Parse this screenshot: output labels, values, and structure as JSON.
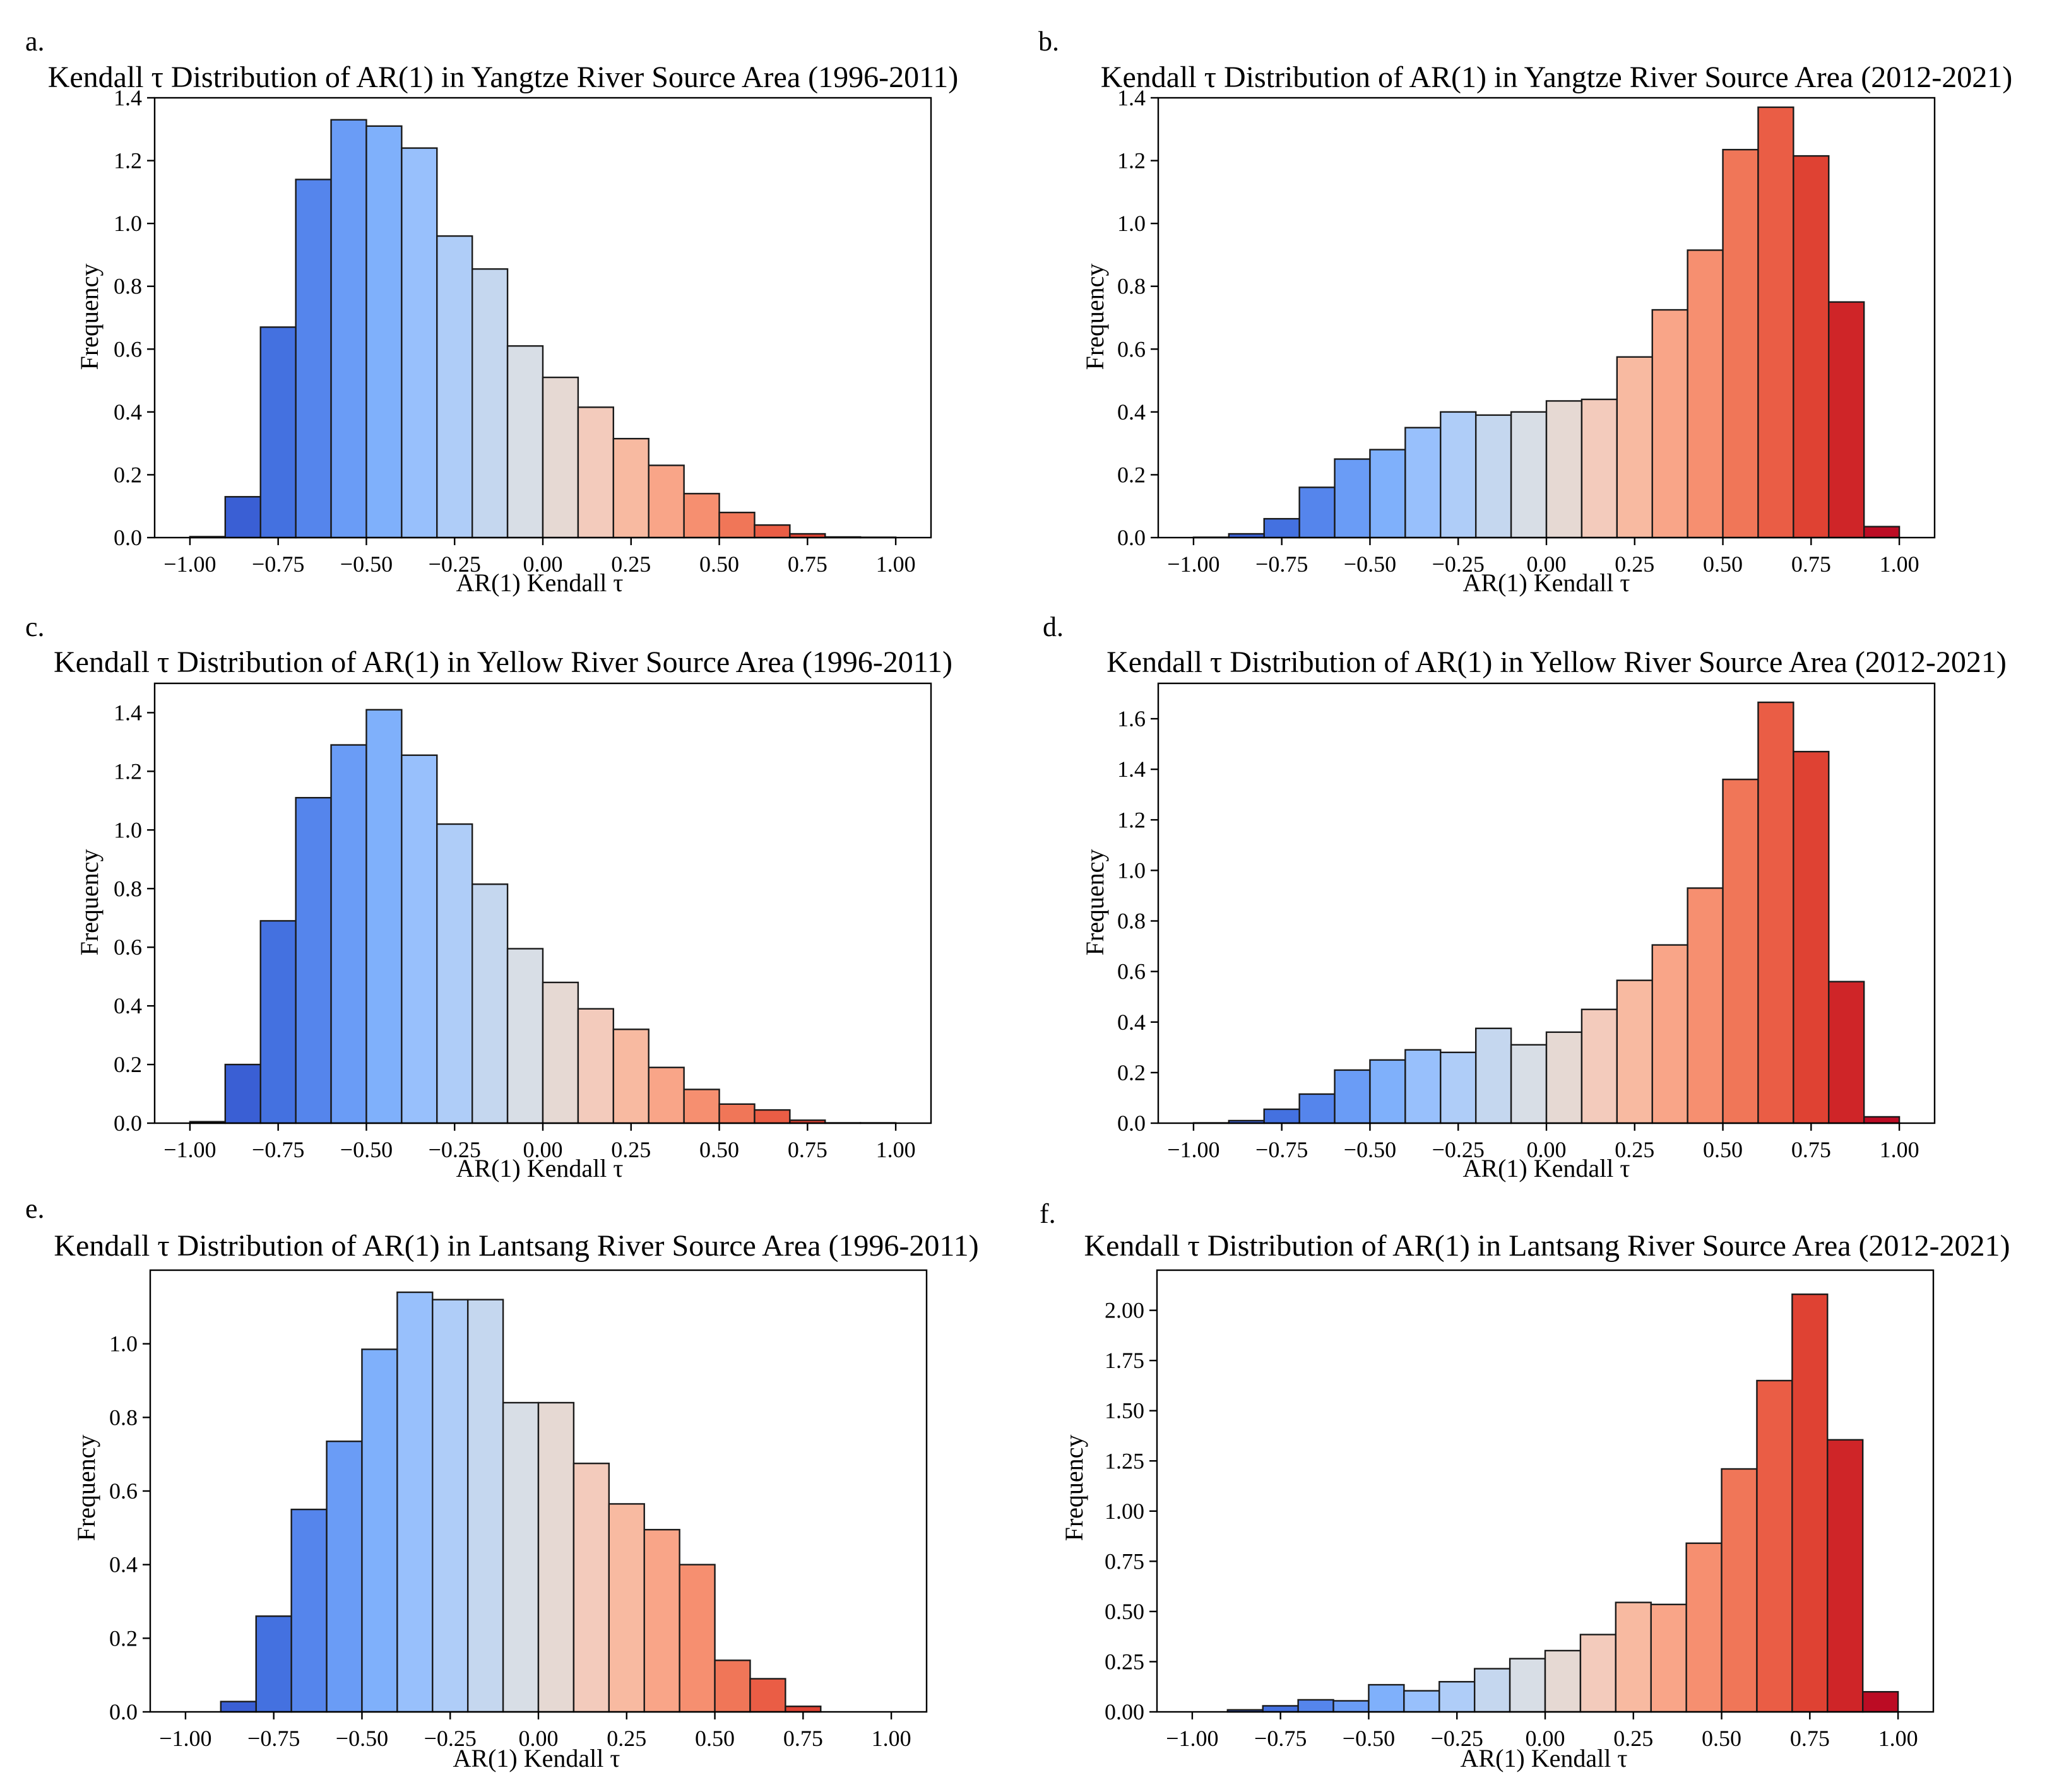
{
  "chart_data": [
    {
      "letter": "a.",
      "type": "bar",
      "title": "Kendall τ Distribution of AR(1) in Yangtze River Source Area (1996-2011)",
      "xlabel": "AR(1) Kendall τ",
      "ylabel": "Frequency",
      "xlim": [
        -1.1,
        1.1
      ],
      "ylim": [
        0,
        1.4
      ],
      "xticks": [
        "−1.00",
        "−0.75",
        "−0.50",
        "−0.25",
        "0.00",
        "0.25",
        "0.50",
        "0.75",
        "1.00"
      ],
      "xtick_values": [
        -1,
        -0.75,
        -0.5,
        -0.25,
        0,
        0.25,
        0.5,
        0.75,
        1
      ],
      "yticks": [
        "0.0",
        "0.2",
        "0.4",
        "0.6",
        "0.8",
        "1.0",
        "1.2",
        "1.4"
      ],
      "ytick_values": [
        0,
        0.2,
        0.4,
        0.6,
        0.8,
        1.0,
        1.2,
        1.4
      ],
      "bin_edges_range": [
        -1.0,
        1.0
      ],
      "values": [
        0.003,
        0.13,
        0.67,
        1.14,
        1.33,
        1.31,
        1.24,
        0.96,
        0.855,
        0.61,
        0.51,
        0.415,
        0.315,
        0.23,
        0.14,
        0.08,
        0.04,
        0.012,
        0.002,
        0.001
      ]
    },
    {
      "letter": "b.",
      "type": "bar",
      "title": "Kendall τ Distribution of AR(1) in Yangtze River Source Area (2012-2021)",
      "xlabel": "AR(1) Kendall τ",
      "ylabel": "Frequency",
      "xlim": [
        -1.1,
        1.1
      ],
      "ylim": [
        0,
        1.4
      ],
      "xticks": [
        "−1.00",
        "−0.75",
        "−0.50",
        "−0.25",
        "0.00",
        "0.25",
        "0.50",
        "0.75",
        "1.00"
      ],
      "xtick_values": [
        -1,
        -0.75,
        -0.5,
        -0.25,
        0,
        0.25,
        0.5,
        0.75,
        1
      ],
      "yticks": [
        "0.0",
        "0.2",
        "0.4",
        "0.6",
        "0.8",
        "1.0",
        "1.2",
        "1.4"
      ],
      "ytick_values": [
        0,
        0.2,
        0.4,
        0.6,
        0.8,
        1.0,
        1.2,
        1.4
      ],
      "bin_edges_range": [
        -1.0,
        1.0
      ],
      "values": [
        0.001,
        0.012,
        0.06,
        0.16,
        0.25,
        0.28,
        0.35,
        0.4,
        0.39,
        0.4,
        0.435,
        0.44,
        0.575,
        0.725,
        0.915,
        1.235,
        1.37,
        1.215,
        0.75,
        0.035
      ]
    },
    {
      "letter": "c.",
      "type": "bar",
      "title": "Kendall τ Distribution of AR(1) in Yellow River Source Area (1996-2011)",
      "xlabel": "AR(1) Kendall τ",
      "ylabel": "Frequency",
      "xlim": [
        -1.1,
        1.1
      ],
      "ylim": [
        0,
        1.5
      ],
      "xticks": [
        "−1.00",
        "−0.75",
        "−0.50",
        "−0.25",
        "0.00",
        "0.25",
        "0.50",
        "0.75",
        "1.00"
      ],
      "xtick_values": [
        -1,
        -0.75,
        -0.5,
        -0.25,
        0,
        0.25,
        0.5,
        0.75,
        1
      ],
      "yticks": [
        "0.0",
        "0.2",
        "0.4",
        "0.6",
        "0.8",
        "1.0",
        "1.2",
        "1.4"
      ],
      "ytick_values": [
        0,
        0.2,
        0.4,
        0.6,
        0.8,
        1.0,
        1.2,
        1.4
      ],
      "bin_edges_range": [
        -1.0,
        1.0
      ],
      "values": [
        0.005,
        0.2,
        0.69,
        1.11,
        1.29,
        1.41,
        1.255,
        1.02,
        0.815,
        0.595,
        0.48,
        0.39,
        0.32,
        0.19,
        0.115,
        0.065,
        0.045,
        0.01,
        0.001,
        0.001
      ]
    },
    {
      "letter": "d.",
      "type": "bar",
      "title": "Kendall τ Distribution of AR(1) in Yellow River Source Area (2012-2021)",
      "xlabel": "AR(1) Kendall τ",
      "ylabel": "Frequency",
      "xlim": [
        -1.1,
        1.1
      ],
      "ylim": [
        0,
        1.74
      ],
      "xticks": [
        "−1.00",
        "−0.75",
        "−0.50",
        "−0.25",
        "0.00",
        "0.25",
        "0.50",
        "0.75",
        "1.00"
      ],
      "xtick_values": [
        -1,
        -0.75,
        -0.5,
        -0.25,
        0,
        0.25,
        0.5,
        0.75,
        1
      ],
      "yticks": [
        "0.0",
        "0.2",
        "0.4",
        "0.6",
        "0.8",
        "1.0",
        "1.2",
        "1.4",
        "1.6"
      ],
      "ytick_values": [
        0,
        0.2,
        0.4,
        0.6,
        0.8,
        1.0,
        1.2,
        1.4,
        1.6
      ],
      "bin_edges_range": [
        -1.0,
        1.0
      ],
      "values": [
        0.001,
        0.01,
        0.055,
        0.115,
        0.21,
        0.25,
        0.29,
        0.28,
        0.375,
        0.31,
        0.36,
        0.45,
        0.565,
        0.705,
        0.93,
        1.36,
        1.665,
        1.47,
        0.56,
        0.025
      ]
    },
    {
      "letter": "e.",
      "type": "bar",
      "title": "Kendall τ Distribution of AR(1) in Lantsang River Source Area (1996-2011)",
      "xlabel": "AR(1) Kendall τ",
      "ylabel": "Frequency",
      "xlim": [
        -1.1,
        1.1
      ],
      "ylim": [
        0,
        1.2
      ],
      "xticks": [
        "−1.00",
        "−0.75",
        "−0.50",
        "−0.25",
        "0.00",
        "0.25",
        "0.50",
        "0.75",
        "1.00"
      ],
      "xtick_values": [
        -1,
        -0.75,
        -0.5,
        -0.25,
        0,
        0.25,
        0.5,
        0.75,
        1
      ],
      "yticks": [
        "0.0",
        "0.2",
        "0.4",
        "0.6",
        "0.8",
        "1.0"
      ],
      "ytick_values": [
        0,
        0.2,
        0.4,
        0.6,
        0.8,
        1.0
      ],
      "bin_edges_range": [
        -1.0,
        1.0
      ],
      "values": [
        0,
        0.028,
        0.26,
        0.55,
        0.735,
        0.985,
        1.14,
        1.12,
        1.12,
        0.84,
        0.84,
        0.675,
        0.565,
        0.495,
        0.4,
        0.14,
        0.09,
        0.015,
        0,
        0
      ]
    },
    {
      "letter": "f.",
      "type": "bar",
      "title": "Kendall τ Distribution of AR(1) in Lantsang River Source Area (2012-2021)",
      "xlabel": "AR(1) Kendall τ",
      "ylabel": "Frequency",
      "xlim": [
        -1.1,
        1.1
      ],
      "ylim": [
        0,
        2.2
      ],
      "xticks": [
        "−1.00",
        "−0.75",
        "−0.50",
        "−0.25",
        "0.00",
        "0.25",
        "0.50",
        "0.75",
        "1.00"
      ],
      "xtick_values": [
        -1,
        -0.75,
        -0.5,
        -0.25,
        0,
        0.25,
        0.5,
        0.75,
        1
      ],
      "yticks": [
        "0.00",
        "0.25",
        "0.50",
        "0.75",
        "1.00",
        "1.25",
        "1.50",
        "1.75",
        "2.00"
      ],
      "ytick_values": [
        0,
        0.25,
        0.5,
        0.75,
        1.0,
        1.25,
        1.5,
        1.75,
        2.0
      ],
      "bin_edges_range": [
        -1.0,
        1.0
      ],
      "values": [
        0,
        0.01,
        0.03,
        0.06,
        0.055,
        0.135,
        0.105,
        0.15,
        0.215,
        0.265,
        0.305,
        0.385,
        0.545,
        0.535,
        0.84,
        1.21,
        1.65,
        2.08,
        1.355,
        0.1
      ]
    }
  ],
  "colors": {
    "bins": [
      "#2f4fc4",
      "#3a5fd4",
      "#4471e0",
      "#5585ec",
      "#6a9cf6",
      "#7fb0fb",
      "#98c0fc",
      "#afcdf8",
      "#c5d7ef",
      "#d8dee6",
      "#e6d9d3",
      "#f3cbbc",
      "#f8baa1",
      "#f9a588",
      "#f68f70",
      "#f07658",
      "#ea5d45",
      "#df4233",
      "#cf2528",
      "#bc0c24"
    ],
    "edge": "#1a1a1a",
    "axis": "#000000"
  }
}
